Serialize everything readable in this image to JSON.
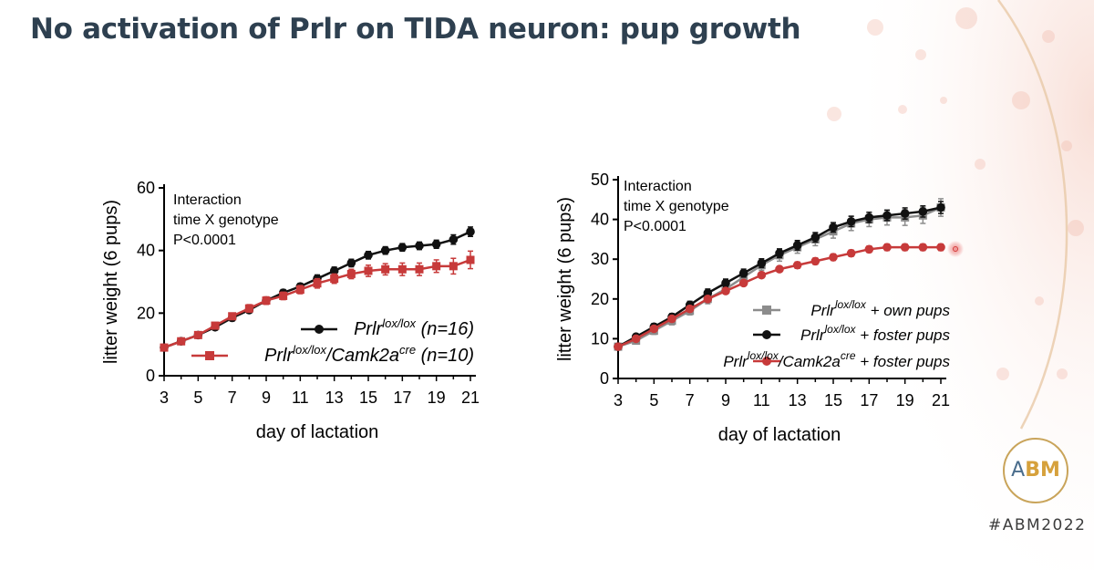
{
  "slide": {
    "title": "No activation of Prlr on TIDA neuron: pup growth",
    "hashtag": "#ABM2022",
    "logo_a": "A",
    "logo_bm": "BM"
  },
  "colors": {
    "black": "#111111",
    "red": "#c73a3a",
    "gray": "#8c8c8c",
    "title": "#2e4050"
  },
  "chart_data": [
    {
      "type": "line",
      "xlabel": "day of lactation",
      "ylabel": "litter weight (6 pups)",
      "xlim": [
        3,
        21
      ],
      "ylim": [
        0,
        60
      ],
      "xticks": [
        3,
        5,
        7,
        9,
        11,
        13,
        15,
        17,
        19,
        21
      ],
      "yticks": [
        0,
        20,
        40,
        60
      ],
      "annotation": [
        "Interaction",
        "time X genotype",
        "P<0.0001"
      ],
      "legend_position": "bottom-right",
      "x": [
        3,
        4,
        5,
        6,
        7,
        8,
        9,
        10,
        11,
        12,
        13,
        14,
        15,
        16,
        17,
        18,
        19,
        20,
        21
      ],
      "series": [
        {
          "name": "Prlr",
          "name_sup": "lox/lox",
          "name_suffix": " (n=16)",
          "color": "#111111",
          "values": [
            9,
            11,
            13,
            15.5,
            18.5,
            21,
            24,
            26.5,
            28.5,
            31,
            33.5,
            36,
            38.5,
            40,
            41,
            41.5,
            42,
            43.5,
            46
          ],
          "errors": [
            0.8,
            0.8,
            0.8,
            0.9,
            1,
            1,
            1,
            1,
            1,
            1.2,
            1.2,
            1.2,
            1.2,
            1.2,
            1.2,
            1.2,
            1.3,
            1.5,
            1.5
          ]
        },
        {
          "name": "Prlr",
          "name_sup": "lox/lox",
          "name_mid": "/Camk2a",
          "name_sup2": "cre",
          "name_suffix": " (n=10)",
          "color": "#c73a3a",
          "values": [
            9,
            11,
            13,
            16,
            19,
            21.5,
            24,
            25.5,
            27.5,
            29.5,
            31,
            32.5,
            33.5,
            34,
            34,
            34,
            35,
            35,
            37
          ],
          "errors": [
            0.8,
            0.8,
            0.8,
            0.9,
            1,
            1.2,
            1.2,
            1.2,
            1.3,
            1.5,
            1.5,
            1.5,
            1.8,
            1.8,
            2,
            2,
            2,
            2.5,
            2.8
          ]
        }
      ]
    },
    {
      "type": "line",
      "xlabel": "day of lactation",
      "ylabel": "litter weight (6 pups)",
      "xlim": [
        3,
        21
      ],
      "ylim": [
        0,
        50
      ],
      "xticks": [
        3,
        5,
        7,
        9,
        11,
        13,
        15,
        17,
        19,
        21
      ],
      "yticks": [
        0,
        10,
        20,
        30,
        40,
        50
      ],
      "annotation": [
        "Interaction",
        "time X genotype",
        "P<0.0001"
      ],
      "legend_position": "bottom-right",
      "x": [
        3,
        4,
        5,
        6,
        7,
        8,
        9,
        10,
        11,
        12,
        13,
        14,
        15,
        16,
        17,
        18,
        19,
        20,
        21
      ],
      "series": [
        {
          "name": "Prlr",
          "name_sup": "lox/lox",
          "name_suffix": " + own pups",
          "color": "#8c8c8c",
          "values": [
            8,
            9.5,
            12,
            14.5,
            17,
            20,
            22.5,
            25.5,
            28.5,
            31,
            33,
            35,
            37,
            39,
            40,
            40.5,
            40.5,
            41,
            43
          ],
          "errors": [
            0.8,
            0.8,
            0.9,
            1,
            1,
            1.2,
            1.2,
            1.3,
            1.3,
            1.5,
            1.5,
            1.6,
            1.7,
            1.8,
            1.8,
            1.9,
            2,
            2,
            2.2
          ]
        },
        {
          "name": "Prlr",
          "name_sup": "lox/lox",
          "name_suffix": " + foster pups",
          "color": "#111111",
          "values": [
            8,
            10.5,
            13,
            15.5,
            18.5,
            21.5,
            24,
            26.5,
            29,
            31.5,
            33.5,
            35.5,
            38,
            39.5,
            40.5,
            41,
            41.5,
            42,
            43
          ],
          "errors": [
            0.7,
            0.7,
            0.8,
            0.8,
            0.9,
            1,
            1,
            1,
            1.1,
            1.1,
            1.2,
            1.2,
            1.2,
            1.3,
            1.3,
            1.3,
            1.4,
            1.4,
            1.5
          ]
        },
        {
          "name": "Prlr",
          "name_sup": "lox/lox",
          "name_mid": "/Camk2a",
          "name_sup2": "cre",
          "name_suffix": " + foster pups",
          "color": "#c73a3a",
          "values": [
            8,
            10,
            12.5,
            15,
            17.5,
            20,
            22,
            24,
            26,
            27.5,
            28.5,
            29.5,
            30.5,
            31.5,
            32.5,
            33,
            33,
            33,
            33
          ],
          "errors": [
            0.5,
            0.5,
            0.5,
            0.6,
            0.6,
            0.6,
            0.7,
            0.7,
            0.7,
            0.7,
            0.8,
            0.8,
            0.8,
            0.8,
            0.8,
            0.8,
            0.8,
            0.8,
            0.8
          ]
        }
      ]
    }
  ]
}
